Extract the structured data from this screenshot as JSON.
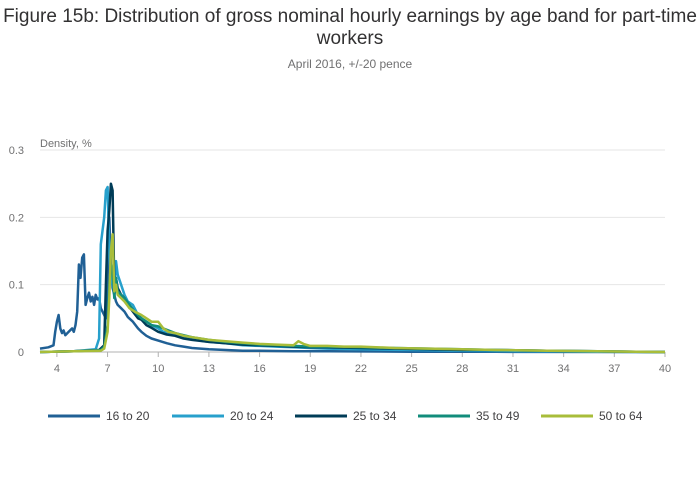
{
  "chart_data": {
    "type": "line",
    "title": "Figure 15b: Distribution of gross nominal hourly earnings by age band for part-time workers",
    "subtitle": "April 2016, +/-20 pence",
    "ylabel": "Density, %",
    "xlabel": "",
    "xlim": [
      3,
      40
    ],
    "ylim": [
      0,
      0.3
    ],
    "x_ticks": [
      4,
      7,
      10,
      13,
      16,
      19,
      22,
      25,
      28,
      31,
      34,
      37,
      40
    ],
    "y_ticks": [
      {
        "value": 0,
        "label": "0"
      },
      {
        "value": 0.1,
        "label": "0.1"
      },
      {
        "value": 0.2,
        "label": "0.2"
      },
      {
        "value": 0.3,
        "label": "0.3"
      }
    ],
    "grid": "horizontal",
    "legend_position": "bottom",
    "series": [
      {
        "name": "16 to 20",
        "color": "#206095",
        "x": [
          3,
          3.5,
          3.8,
          3.9,
          4.0,
          4.1,
          4.2,
          4.3,
          4.4,
          4.5,
          4.7,
          4.9,
          5.0,
          5.1,
          5.2,
          5.3,
          5.4,
          5.5,
          5.6,
          5.7,
          5.8,
          5.9,
          6.0,
          6.1,
          6.2,
          6.3,
          6.4,
          6.5,
          6.6,
          6.7,
          6.8,
          6.9,
          7.0,
          7.1,
          7.2,
          7.3,
          7.4,
          7.5,
          7.6,
          7.8,
          8.0,
          8.2,
          8.5,
          8.8,
          9.0,
          9.3,
          9.6,
          10.0,
          10.5,
          11.0,
          11.5,
          12.0,
          13.0,
          14.0,
          15.0,
          16.0,
          18.0,
          20.0,
          25.0,
          30.0,
          40.0
        ],
        "y": [
          0.005,
          0.007,
          0.01,
          0.03,
          0.045,
          0.055,
          0.035,
          0.028,
          0.032,
          0.025,
          0.03,
          0.035,
          0.03,
          0.04,
          0.06,
          0.13,
          0.11,
          0.14,
          0.145,
          0.07,
          0.08,
          0.088,
          0.075,
          0.082,
          0.07,
          0.085,
          0.078,
          0.08,
          0.065,
          0.06,
          0.055,
          0.05,
          0.11,
          0.2,
          0.13,
          0.095,
          0.085,
          0.075,
          0.07,
          0.065,
          0.06,
          0.052,
          0.045,
          0.035,
          0.03,
          0.024,
          0.02,
          0.017,
          0.013,
          0.01,
          0.008,
          0.006,
          0.004,
          0.003,
          0.002,
          0.002,
          0.001,
          0.001,
          0.0005,
          0.0003,
          0.0
        ]
      },
      {
        "name": "20 to 24",
        "color": "#27a0cc",
        "x": [
          3,
          5,
          6.3,
          6.5,
          6.6,
          6.7,
          6.8,
          6.9,
          7.0,
          7.1,
          7.2,
          7.3,
          7.4,
          7.5,
          7.6,
          7.8,
          8.0,
          8.2,
          8.5,
          8.8,
          9.0,
          9.3,
          9.6,
          10.0,
          10.3,
          10.6,
          11.0,
          11.5,
          12.0,
          12.5,
          13.0,
          14.0,
          15.0,
          16.0,
          17.0,
          18.0,
          19.0,
          20.0,
          22.0,
          25.0,
          28.0,
          32.0,
          36.0,
          40.0
        ],
        "y": [
          0.0,
          0.001,
          0.004,
          0.02,
          0.16,
          0.18,
          0.2,
          0.24,
          0.245,
          0.15,
          0.11,
          0.1,
          0.09,
          0.135,
          0.115,
          0.1,
          0.085,
          0.075,
          0.07,
          0.055,
          0.05,
          0.045,
          0.04,
          0.035,
          0.03,
          0.028,
          0.025,
          0.022,
          0.02,
          0.017,
          0.015,
          0.013,
          0.01,
          0.009,
          0.008,
          0.007,
          0.006,
          0.005,
          0.004,
          0.003,
          0.002,
          0.001,
          0.0005,
          0.0
        ]
      },
      {
        "name": "25 to 34",
        "color": "#003c57",
        "x": [
          3,
          5,
          6.5,
          6.8,
          6.9,
          7.0,
          7.1,
          7.2,
          7.3,
          7.4,
          7.5,
          7.6,
          7.8,
          8.0,
          8.2,
          8.5,
          8.8,
          9.0,
          9.3,
          9.6,
          10.0,
          10.5,
          11.0,
          11.5,
          12.0,
          13.0,
          14.0,
          15.0,
          16.0,
          17.0,
          18.0,
          19.0,
          20.0,
          22.0,
          24.0,
          26.0,
          28.0,
          30.0,
          33.0,
          36.0,
          40.0
        ],
        "y": [
          0.0,
          0.001,
          0.003,
          0.01,
          0.1,
          0.18,
          0.21,
          0.25,
          0.24,
          0.1,
          0.11,
          0.095,
          0.085,
          0.08,
          0.07,
          0.06,
          0.05,
          0.048,
          0.04,
          0.036,
          0.03,
          0.026,
          0.024,
          0.02,
          0.018,
          0.015,
          0.013,
          0.011,
          0.01,
          0.009,
          0.008,
          0.007,
          0.007,
          0.006,
          0.005,
          0.004,
          0.003,
          0.003,
          0.002,
          0.001,
          0.0
        ]
      },
      {
        "name": "35 to 49",
        "color": "#118c7b",
        "x": [
          3,
          5,
          6.6,
          6.8,
          7.0,
          7.1,
          7.2,
          7.3,
          7.4,
          7.5,
          7.6,
          7.8,
          8.0,
          8.3,
          8.6,
          9.0,
          9.3,
          9.6,
          10.0,
          10.5,
          11.0,
          11.5,
          12.0,
          13.0,
          14.0,
          15.0,
          16.0,
          17.0,
          18.0,
          19.0,
          20.0,
          22.0,
          24.0,
          26.0,
          28.0,
          30.0,
          33.0,
          36.0,
          40.0
        ],
        "y": [
          0.0,
          0.001,
          0.003,
          0.008,
          0.04,
          0.1,
          0.13,
          0.12,
          0.08,
          0.11,
          0.09,
          0.085,
          0.08,
          0.07,
          0.06,
          0.05,
          0.045,
          0.04,
          0.038,
          0.033,
          0.028,
          0.025,
          0.022,
          0.018,
          0.015,
          0.013,
          0.011,
          0.01,
          0.009,
          0.008,
          0.008,
          0.007,
          0.006,
          0.005,
          0.004,
          0.003,
          0.002,
          0.001,
          0.0
        ]
      },
      {
        "name": "50 to 64",
        "color": "#a8bd3a",
        "x": [
          3,
          5,
          6.6,
          6.8,
          7.0,
          7.1,
          7.2,
          7.3,
          7.4,
          7.5,
          7.6,
          7.8,
          8.0,
          8.3,
          8.6,
          9.0,
          9.3,
          9.6,
          10.0,
          10.3,
          10.6,
          11.0,
          11.5,
          12.0,
          12.5,
          13.0,
          14.0,
          15.0,
          16.0,
          17.0,
          18.0,
          18.3,
          18.6,
          19.0,
          20.0,
          21.0,
          22.0,
          24.0,
          26.0,
          28.0,
          30.0,
          33.0,
          36.0,
          40.0
        ],
        "y": [
          0.0,
          0.001,
          0.002,
          0.005,
          0.03,
          0.08,
          0.15,
          0.175,
          0.09,
          0.1,
          0.085,
          0.08,
          0.075,
          0.065,
          0.06,
          0.055,
          0.05,
          0.045,
          0.045,
          0.035,
          0.03,
          0.028,
          0.024,
          0.022,
          0.02,
          0.018,
          0.016,
          0.014,
          0.012,
          0.011,
          0.01,
          0.016,
          0.012,
          0.009,
          0.009,
          0.008,
          0.008,
          0.006,
          0.005,
          0.004,
          0.003,
          0.002,
          0.001,
          0.0
        ]
      }
    ]
  }
}
